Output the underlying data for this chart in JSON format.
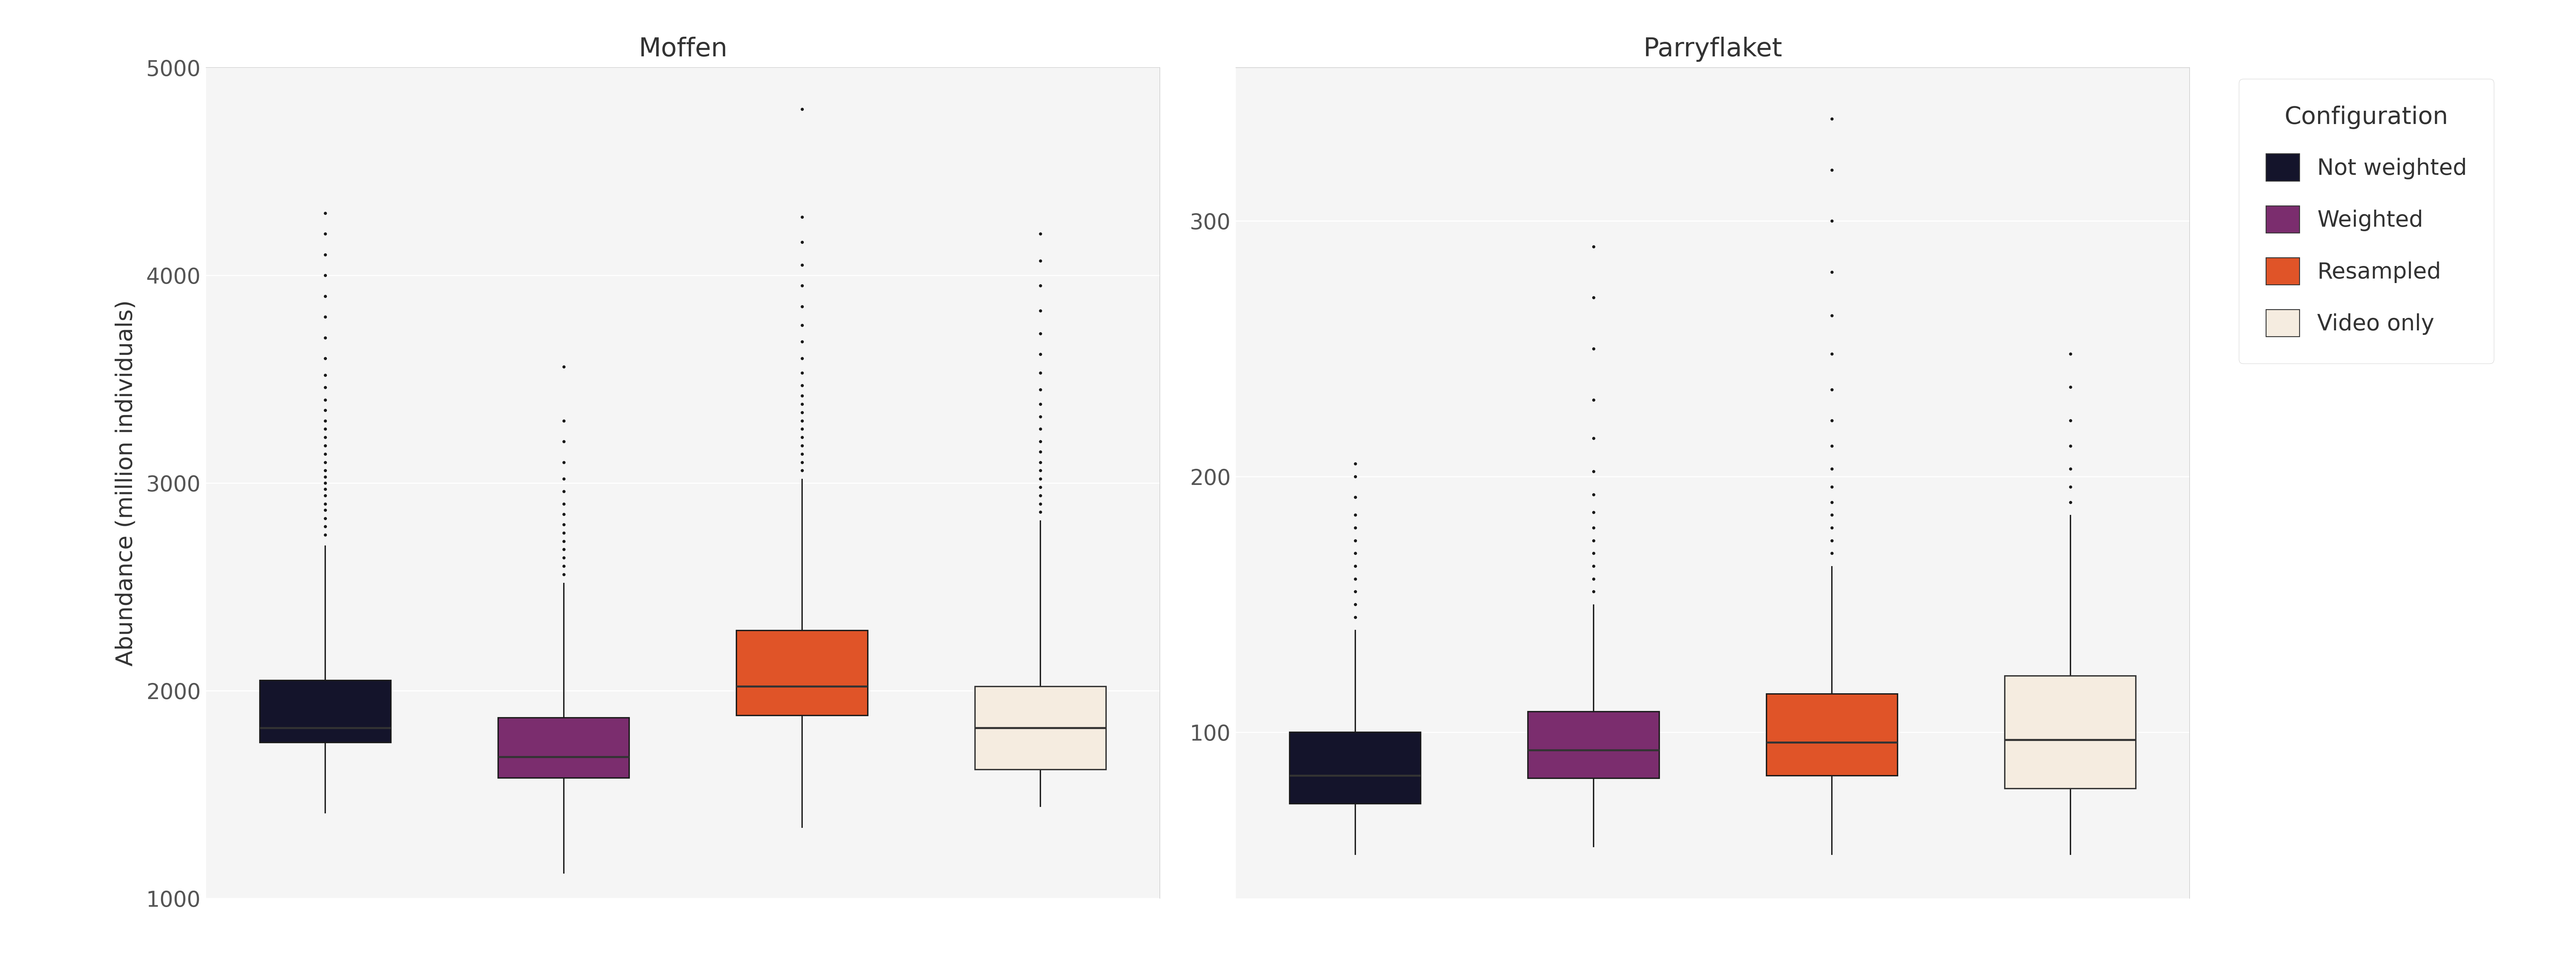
{
  "title_left": "Moffen",
  "title_right": "Parryflaket",
  "ylabel": "Abundance (million individuals)",
  "legend_title": "Configuration",
  "legend_labels": [
    "Not weighted",
    "Weighted",
    "Resampled",
    "Video only"
  ],
  "colors": [
    "#14142b",
    "#7b2d6e",
    "#e05428",
    "#f5ece0"
  ],
  "median_color": "#555555",
  "panel_bg": "#f5f5f5",
  "grid_color": "#ffffff",
  "moffen": {
    "ylim": [
      1000,
      5000
    ],
    "yticks": [
      1000,
      2000,
      3000,
      4000,
      5000
    ],
    "boxes": [
      {
        "q1": 1750,
        "median": 1820,
        "q3": 2050,
        "whislo": 1410,
        "whishi": 2700,
        "fliers_hi": [
          2750,
          2790,
          2830,
          2870,
          2900,
          2940,
          2970,
          3000,
          3030,
          3060,
          3100,
          3140,
          3180,
          3220,
          3260,
          3300,
          3350,
          3400,
          3460,
          3520,
          3600,
          3700,
          3800,
          3900,
          4000,
          4100,
          4200,
          4300
        ],
        "fliers_lo": []
      },
      {
        "q1": 1580,
        "median": 1680,
        "q3": 1870,
        "whislo": 1120,
        "whishi": 2520,
        "fliers_hi": [
          2560,
          2600,
          2640,
          2680,
          2720,
          2760,
          2800,
          2850,
          2900,
          2960,
          3020,
          3100,
          3200,
          3300,
          3560
        ],
        "fliers_lo": []
      },
      {
        "q1": 1880,
        "median": 2020,
        "q3": 2290,
        "whislo": 1340,
        "whishi": 3020,
        "fliers_hi": [
          3060,
          3100,
          3140,
          3180,
          3220,
          3260,
          3300,
          3340,
          3380,
          3420,
          3470,
          3530,
          3600,
          3680,
          3760,
          3850,
          3950,
          4050,
          4160,
          4280,
          4800
        ],
        "fliers_lo": []
      },
      {
        "q1": 1620,
        "median": 1820,
        "q3": 2020,
        "whislo": 1440,
        "whishi": 2820,
        "fliers_hi": [
          2860,
          2900,
          2940,
          2980,
          3020,
          3060,
          3100,
          3150,
          3200,
          3260,
          3320,
          3380,
          3450,
          3530,
          3620,
          3720,
          3830,
          3950,
          4070,
          4200
        ],
        "fliers_lo": []
      }
    ]
  },
  "parryflaket": {
    "ylim": [
      35,
      360
    ],
    "yticks": [
      100,
      200,
      300
    ],
    "boxes": [
      {
        "q1": 72,
        "median": 83,
        "q3": 100,
        "whislo": 52,
        "whishi": 140,
        "fliers_hi": [
          145,
          150,
          155,
          160,
          165,
          170,
          175,
          180,
          185,
          192,
          200,
          205
        ],
        "fliers_lo": []
      },
      {
        "q1": 82,
        "median": 93,
        "q3": 108,
        "whislo": 55,
        "whishi": 150,
        "fliers_hi": [
          155,
          160,
          165,
          170,
          175,
          180,
          186,
          193,
          202,
          215,
          230,
          250,
          270,
          290
        ],
        "fliers_lo": []
      },
      {
        "q1": 83,
        "median": 96,
        "q3": 115,
        "whislo": 52,
        "whishi": 165,
        "fliers_hi": [
          170,
          175,
          180,
          185,
          190,
          196,
          203,
          212,
          222,
          234,
          248,
          263,
          280,
          300,
          320,
          340
        ],
        "fliers_lo": []
      },
      {
        "q1": 78,
        "median": 97,
        "q3": 122,
        "whislo": 52,
        "whishi": 185,
        "fliers_hi": [
          190,
          196,
          203,
          212,
          222,
          235,
          248
        ],
        "fliers_lo": []
      }
    ]
  },
  "box_width": 0.55,
  "positions": [
    1,
    2,
    3,
    4
  ],
  "xlim": [
    0.5,
    4.5
  ],
  "figsize": [
    80,
    30
  ],
  "dpi": 100,
  "title_fontsize": 58,
  "label_fontsize": 52,
  "tick_fontsize": 48,
  "legend_fontsize": 50,
  "legend_title_fontsize": 54,
  "linewidth": 3.0,
  "flier_size": 7
}
